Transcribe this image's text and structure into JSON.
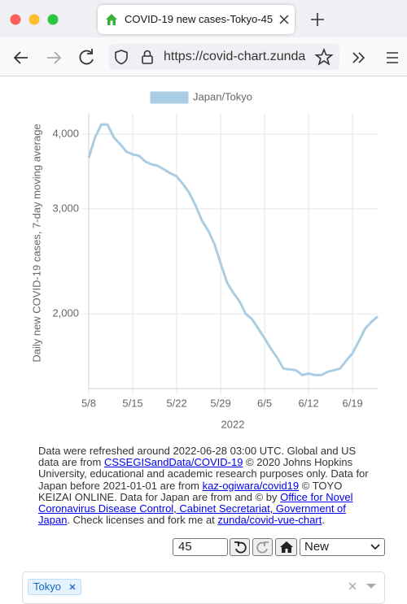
{
  "browser": {
    "tab_title": "COVID-19 new cases-Tokyo-45",
    "url": "https://covid-chart.zunda"
  },
  "chart_data": {
    "type": "line",
    "ylabel": "Daily new COVID-19 cases, 7-day moving average",
    "xlabel": "2022",
    "categories": [
      "5/8",
      null,
      null,
      null,
      null,
      null,
      null,
      "5/15",
      null,
      null,
      null,
      null,
      null,
      null,
      "5/22",
      null,
      null,
      null,
      null,
      null,
      null,
      "5/29",
      null,
      null,
      null,
      null,
      null,
      null,
      "6/5",
      null,
      null,
      null,
      null,
      null,
      null,
      "6/12",
      null,
      null,
      null,
      null,
      null,
      null,
      "6/19",
      null,
      null,
      null,
      null
    ],
    "series": [
      {
        "name": "Japan/Tokyo",
        "color": "#abcde3",
        "values": [
          3650,
          3950,
          4150,
          4150,
          3950,
          3850,
          3740,
          3700,
          3680,
          3600,
          3560,
          3540,
          3490,
          3440,
          3400,
          3300,
          3190,
          3040,
          2870,
          2760,
          2620,
          2430,
          2260,
          2170,
          2100,
          2000,
          1960,
          1890,
          1820,
          1750,
          1690,
          1620,
          1615,
          1610,
          1580,
          1590,
          1580,
          1580,
          1600,
          1610,
          1620,
          1670,
          1720,
          1800,
          1890,
          1940,
          1980
        ]
      }
    ],
    "ylim": [
      1500,
      4340
    ],
    "yticks": [
      {
        "value": 2000,
        "label": "2,000"
      },
      {
        "value": 3000,
        "label": "3,000"
      },
      {
        "value": 4000,
        "label": "4,000"
      }
    ],
    "log_scale": true,
    "grid": true,
    "legend": "top"
  },
  "footer": {
    "parts": [
      {
        "text": "Data were refreshed around 2022-06-28 03:00 UTC. Global and US data are from "
      },
      {
        "link": "CSSEGISandData/COVID-19"
      },
      {
        "text": " © 2020 Johns Hopkins University, educational and academic research purposes only. Data for Japan before 2021-01-01 are from "
      },
      {
        "link": "kaz-ogiwara/covid19"
      },
      {
        "text": " © TOYO KEIZAI ONLINE. Data for Japan are from and © by "
      },
      {
        "link": "Office for Novel Coronavirus Disease Control, Cabinet Secretariat, Government of Japan"
      },
      {
        "text": ". Check licenses and fork me at "
      },
      {
        "link": "zunda/covid-vue-chart"
      },
      {
        "text": "."
      }
    ]
  },
  "controls": {
    "days": "45",
    "mode": "New",
    "selected_tags": [
      "Tokyo"
    ]
  }
}
